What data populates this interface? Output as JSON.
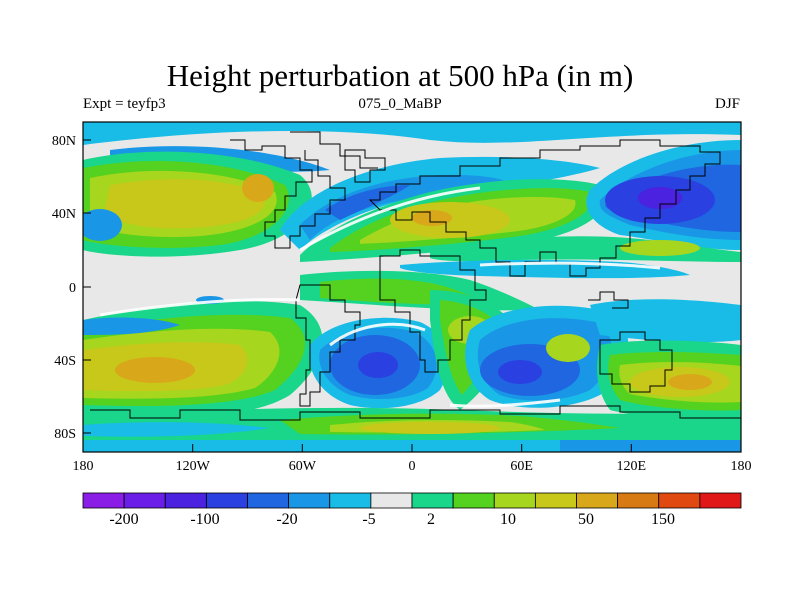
{
  "title": "Height perturbation at 500 hPa (in m)",
  "subtitle_left": "Expt = teyfp3",
  "subtitle_center": "075_0_MaBP",
  "subtitle_right": "DJF",
  "map": {
    "projection": "cylindrical equidistant",
    "lon_range": [
      -180,
      180
    ],
    "lat_range": [
      -90,
      90
    ],
    "x_tick_labels": [
      "180",
      "120W",
      "60W",
      "0",
      "60E",
      "120E",
      "180"
    ],
    "y_tick_labels": [
      "80N",
      "40N",
      "0",
      "40S",
      "80S"
    ]
  },
  "colorbar": {
    "labels": [
      "-200",
      "-100",
      "-20",
      "-5",
      "2",
      "10",
      "50",
      "150"
    ],
    "colors": [
      "#8a1ee6",
      "#6a1ee8",
      "#4a22e0",
      "#2a40e0",
      "#1f66e0",
      "#1a96e6",
      "#19bce6",
      "#e8e8e8",
      "#19d68a",
      "#55d21f",
      "#a6d61e",
      "#c8c81a",
      "#d8a81a",
      "#d87a14",
      "#e04a10",
      "#e01818"
    ]
  },
  "colors": {
    "background_field": "#e8e8e8",
    "neg_light": "#19bce6",
    "neg_mid": "#1a96e6",
    "neg_strong": "#1f66e0",
    "neg_deep": "#2a40e0",
    "neg_extreme": "#4a22e0",
    "pos_light": "#19d68a",
    "pos_mid": "#55d21f",
    "pos_strong": "#a6d61e",
    "pos_deep": "#c8c81a",
    "pos_max": "#d8a81a",
    "pos_extreme": "#d87a14"
  }
}
